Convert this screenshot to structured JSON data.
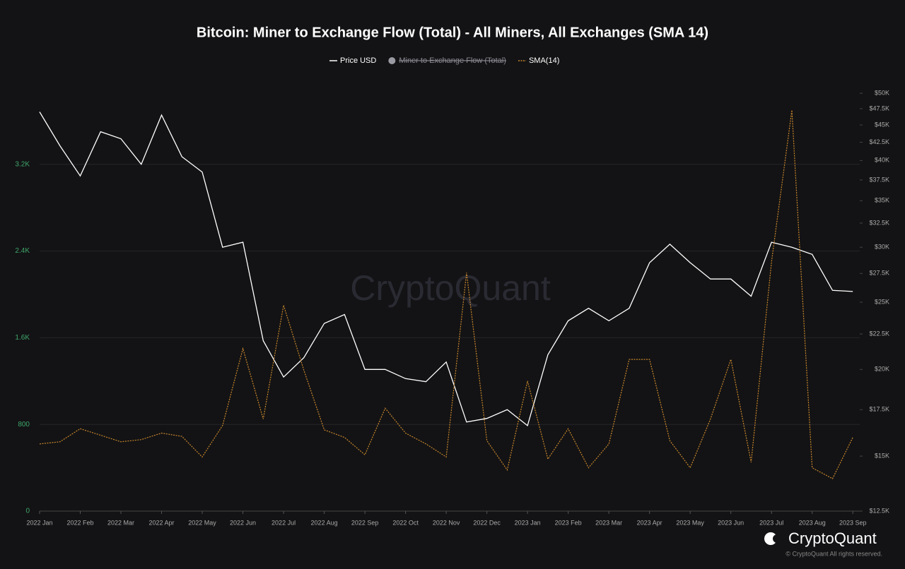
{
  "chart_data": {
    "type": "line",
    "title": "Bitcoin: Miner to Exchange Flow (Total) - All Miners, All Exchanges (SMA 14)",
    "watermark": "CryptoQuant",
    "brand": "CryptoQuant",
    "copyright": "© CryptoQuant All rights reserved.",
    "x": [
      0,
      0.5,
      1,
      1.5,
      2,
      2.5,
      3,
      3.5,
      4,
      4.5,
      5,
      5.5,
      6,
      6.5,
      7,
      7.5,
      8,
      8.5,
      9,
      9.5,
      10,
      10.5,
      11,
      11.5,
      12,
      12.5,
      13,
      13.5,
      14,
      14.5,
      15,
      15.5,
      16,
      16.5,
      17,
      17.5,
      18,
      18.5,
      19,
      19.5,
      20
    ],
    "xlim": [
      0,
      20.17
    ],
    "xticks": [
      {
        "value": 0,
        "label": "2022 Jan"
      },
      {
        "value": 1,
        "label": "2022 Feb"
      },
      {
        "value": 2,
        "label": "2022 Mar"
      },
      {
        "value": 3,
        "label": "2022 Apr"
      },
      {
        "value": 4,
        "label": "2022 May"
      },
      {
        "value": 5,
        "label": "2022 Jun"
      },
      {
        "value": 6,
        "label": "2022 Jul"
      },
      {
        "value": 7,
        "label": "2022 Aug"
      },
      {
        "value": 8,
        "label": "2022 Sep"
      },
      {
        "value": 9,
        "label": "2022 Oct"
      },
      {
        "value": 10,
        "label": "2022 Nov"
      },
      {
        "value": 11,
        "label": "2022 Dec"
      },
      {
        "value": 12,
        "label": "2023 Jan"
      },
      {
        "value": 13,
        "label": "2023 Feb"
      },
      {
        "value": 14,
        "label": "2023 Mar"
      },
      {
        "value": 15,
        "label": "2023 Apr"
      },
      {
        "value": 16,
        "label": "2023 May"
      },
      {
        "value": 17,
        "label": "2023 Jun"
      },
      {
        "value": 18,
        "label": "2023 Jul"
      },
      {
        "value": 19,
        "label": "2023 Aug"
      },
      {
        "value": 20,
        "label": "2023 Sep"
      }
    ],
    "ylim": [
      0,
      4000
    ],
    "yticks": [
      0,
      800,
      {
        "value": 1600,
        "label": "1.6K"
      },
      {
        "value": 2400,
        "label": "2.4K"
      },
      {
        "value": 3200,
        "label": "3.2K"
      }
    ],
    "y2lim": [
      12500,
      52650
    ],
    "y2log": true,
    "y2ticks": [
      {
        "value": 12500,
        "label": "$12.5K"
      },
      {
        "value": 15000,
        "label": "$15K"
      },
      {
        "value": 17500,
        "label": "$17.5K"
      },
      {
        "value": 20000,
        "label": "$20K"
      },
      {
        "value": 22500,
        "label": "$22.5K"
      },
      {
        "value": 25000,
        "label": "$25K"
      },
      {
        "value": 27500,
        "label": "$27.5K"
      },
      {
        "value": 30000,
        "label": "$30K"
      },
      {
        "value": 32500,
        "label": "$32.5K"
      },
      {
        "value": 35000,
        "label": "$35K"
      },
      {
        "value": 37500,
        "label": "$37.5K"
      },
      {
        "value": 40000,
        "label": "$40K"
      },
      {
        "value": 42500,
        "label": "$42.5K"
      },
      {
        "value": 45000,
        "label": "$45K"
      },
      {
        "value": 47500,
        "label": "$47.5K"
      },
      {
        "value": 50000,
        "label": "$50K"
      }
    ],
    "grid": true,
    "series": [
      {
        "name": "Price USD",
        "color": "#ffffff",
        "axis": "y2",
        "dash": false,
        "values": [
          47000,
          42000,
          38000,
          44000,
          43000,
          39500,
          46500,
          40500,
          38500,
          30000,
          30500,
          22000,
          19500,
          20800,
          23300,
          24000,
          20000,
          20000,
          19400,
          19200,
          20500,
          16800,
          17000,
          17500,
          16600,
          21000,
          23500,
          24500,
          23500,
          24500,
          28500,
          30300,
          28500,
          27000,
          27000,
          25500,
          30500,
          30000,
          29300,
          26000,
          25900
        ]
      },
      {
        "name": "SMA(14)",
        "color": "#c8862b",
        "axis": "y",
        "dash": true,
        "values": [
          620,
          640,
          760,
          700,
          640,
          660,
          720,
          690,
          500,
          790,
          1500,
          850,
          1900,
          1300,
          750,
          680,
          520,
          950,
          720,
          620,
          500,
          2200,
          650,
          380,
          1200,
          480,
          760,
          400,
          620,
          1400,
          1400,
          650,
          400,
          850,
          1400,
          450,
          2300,
          3700,
          400,
          300,
          680
        ]
      }
    ],
    "hidden_series": [
      {
        "name": "Miner to Exchange Flow (Total)",
        "color": "#9a9aa2"
      }
    ]
  }
}
